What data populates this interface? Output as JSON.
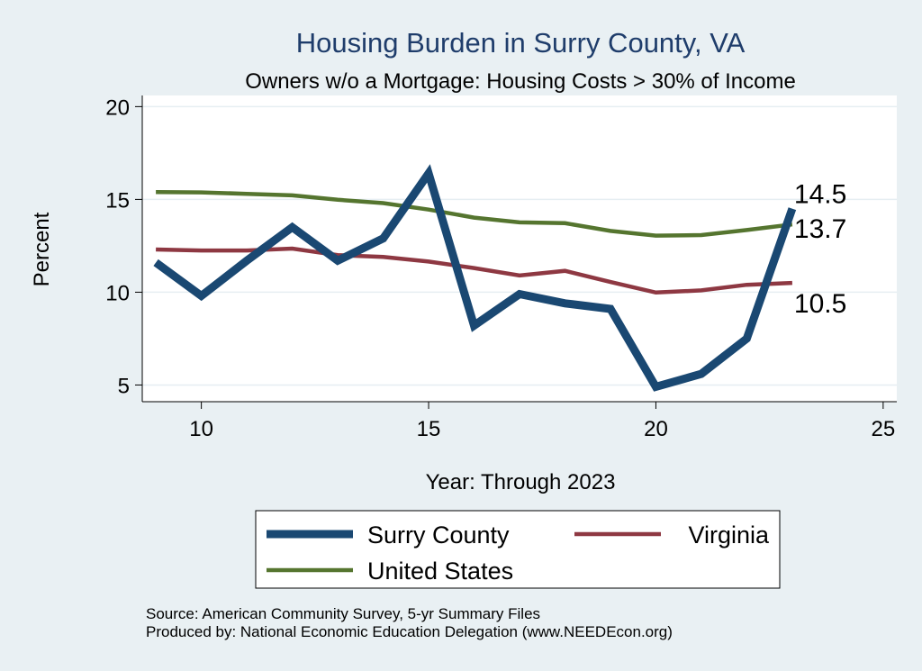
{
  "chart_data": {
    "type": "line",
    "title": "Housing Burden in Surry County, VA",
    "subtitle": "Owners w/o a Mortgage: Housing Costs > 30% of Income",
    "xlabel": "Year: Through 2023",
    "ylabel": "Percent",
    "xlim": [
      8.7,
      25.3
    ],
    "ylim": [
      4.1,
      20.6
    ],
    "xticks": [
      10,
      15,
      20,
      25
    ],
    "yticks": [
      5,
      10,
      15,
      20
    ],
    "grid": "horizontal",
    "x": [
      9,
      10,
      11,
      12,
      13,
      14,
      15,
      16,
      17,
      18,
      19,
      20,
      21,
      22,
      23
    ],
    "series": [
      {
        "name": "Surry County",
        "color": "#1a4872",
        "values": [
          11.6,
          9.8,
          11.7,
          13.5,
          11.7,
          12.9,
          16.4,
          8.2,
          9.9,
          9.4,
          9.1,
          4.9,
          5.6,
          7.5,
          14.5
        ],
        "end_label": "14.5"
      },
      {
        "name": "Virginia",
        "color": "#8e3842",
        "values": [
          12.3,
          12.25,
          12.25,
          12.35,
          12.0,
          11.9,
          11.65,
          11.3,
          10.9,
          11.15,
          10.55,
          9.98,
          10.1,
          10.4,
          10.5
        ],
        "end_label": "10.5"
      },
      {
        "name": "United States",
        "color": "#55752f",
        "values": [
          15.4,
          15.38,
          15.3,
          15.22,
          14.98,
          14.8,
          14.45,
          14.02,
          13.76,
          13.72,
          13.3,
          13.05,
          13.08,
          13.35,
          13.65
        ],
        "end_label": "13.7"
      }
    ]
  },
  "source": {
    "line1": "Source: American Community Survey, 5-yr Summary Files",
    "line2": "Produced by: National Economic Education Delegation (www.NEEDEcon.org)"
  }
}
